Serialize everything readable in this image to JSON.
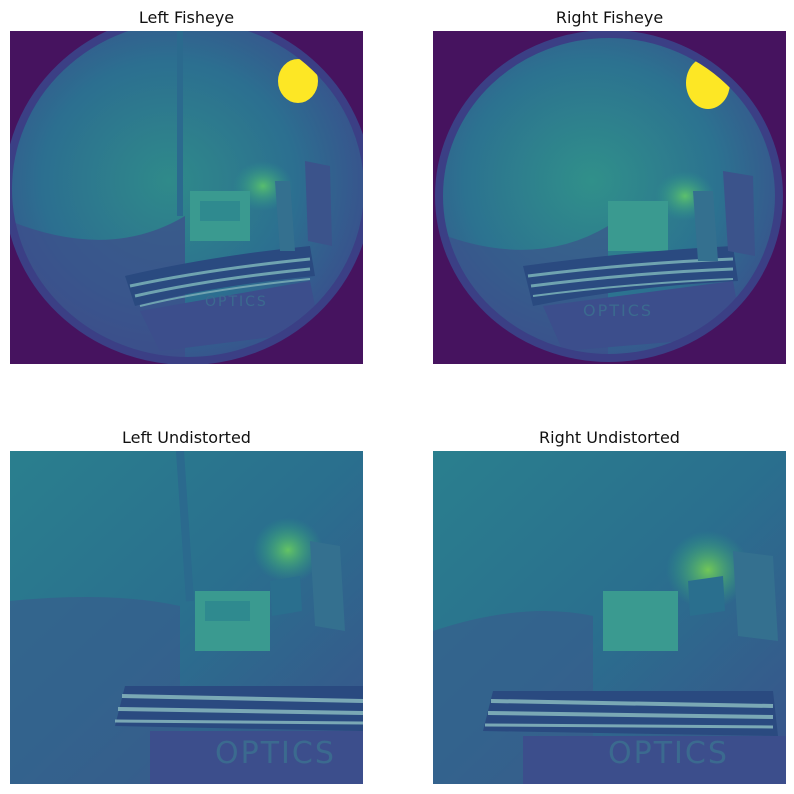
{
  "figure": {
    "panels": [
      {
        "title": "Left Fisheye"
      },
      {
        "title": "Right Fisheye"
      },
      {
        "title": "Left Undistorted"
      },
      {
        "title": "Right Undistorted"
      }
    ],
    "scene_text": "OPTICS",
    "colormap": {
      "dark": "#46115f",
      "mid": "#2a788e",
      "bright": "#3db886",
      "highlight": "#fde725"
    }
  }
}
